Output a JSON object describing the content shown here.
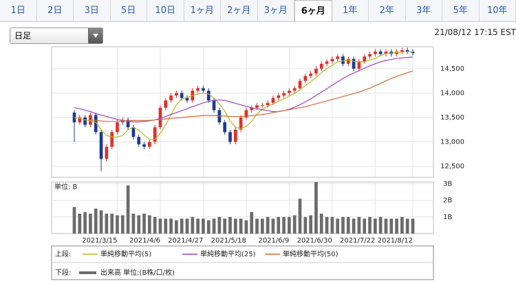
{
  "tabs": {
    "items": [
      "1日",
      "2日",
      "3日",
      "5日",
      "10日",
      "1ヶ月",
      "2ヶ月",
      "3ヶ月",
      "6ヶ月",
      "1年",
      "2年",
      "3年",
      "5年",
      "10年"
    ],
    "selected": 8
  },
  "dropdown": "日足",
  "timestamp": "21/08/12 17:15 EST",
  "legend": {
    "upper_label": "上段:",
    "lower_label": "下段:"
  },
  "chart_data": [
    {
      "type": "candlestick",
      "color_up": "#e0302a",
      "color_down": "#1c3a94",
      "grid": true,
      "categories": [
        null,
        null,
        null,
        null,
        null,
        null,
        null,
        null,
        "2021/3/15",
        null,
        null,
        null,
        null,
        null,
        null,
        null,
        "2021/4/6",
        null,
        null,
        null,
        null,
        null,
        null,
        null,
        "2021/4/27",
        null,
        null,
        null,
        null,
        null,
        null,
        null,
        "2021/5/18",
        null,
        null,
        null,
        null,
        null,
        null,
        null,
        "2021/6/9",
        null,
        null,
        null,
        null,
        null,
        null,
        null,
        "2021/6/30",
        null,
        null,
        null,
        null,
        null,
        null,
        null,
        "2021/7/22",
        null,
        null,
        null,
        null,
        null,
        null,
        "2021/8/12"
      ],
      "open": [
        13600,
        13400,
        13500,
        13350,
        13550,
        13200,
        12650,
        12900,
        13200,
        13400,
        13450,
        13300,
        13100,
        12950,
        12900,
        13000,
        13300,
        13700,
        13850,
        13950,
        14000,
        13900,
        13850,
        14050,
        14100,
        14050,
        13850,
        13650,
        13400,
        13200,
        13000,
        13250,
        13500,
        13650,
        13700,
        13750,
        13750,
        13800,
        13900,
        13950,
        14000,
        14050,
        14100,
        14250,
        14350,
        14400,
        14500,
        14600,
        14650,
        14700,
        14750,
        14600,
        14700,
        14500,
        14650,
        14750,
        14800,
        14850,
        14800,
        14850,
        14800,
        14850,
        14880,
        14850
      ],
      "high": [
        13650,
        13550,
        13550,
        13600,
        13600,
        13250,
        12950,
        13250,
        13450,
        13500,
        13500,
        13350,
        13150,
        13000,
        13050,
        13350,
        13750,
        13900,
        14000,
        14050,
        14050,
        13950,
        14100,
        14150,
        14150,
        14100,
        13900,
        13700,
        13450,
        13250,
        13300,
        13550,
        13700,
        13750,
        13800,
        13800,
        13850,
        13950,
        14000,
        14050,
        14100,
        14150,
        14300,
        14400,
        14450,
        14550,
        14650,
        14700,
        14750,
        14800,
        14800,
        14750,
        14750,
        14700,
        14800,
        14850,
        14900,
        14900,
        14900,
        14900,
        14900,
        14930,
        14930,
        14900
      ],
      "low": [
        13000,
        13350,
        13300,
        13300,
        13150,
        12400,
        12600,
        12850,
        13150,
        13350,
        13250,
        13050,
        12900,
        12850,
        12850,
        12950,
        13250,
        13650,
        13800,
        13900,
        13850,
        13800,
        13800,
        14000,
        14000,
        13800,
        13600,
        13350,
        13150,
        12950,
        12950,
        13200,
        13450,
        13600,
        13650,
        13700,
        13700,
        13750,
        13850,
        13900,
        13950,
        14000,
        14050,
        14200,
        14300,
        14350,
        14450,
        14550,
        14600,
        14650,
        14550,
        14550,
        14450,
        14450,
        14600,
        14700,
        14750,
        14750,
        14750,
        14750,
        14750,
        14800,
        14800,
        14770
      ],
      "close": [
        13400,
        13500,
        13350,
        13550,
        13200,
        12650,
        12900,
        13200,
        13400,
        13450,
        13300,
        13100,
        12950,
        12900,
        13000,
        13300,
        13700,
        13850,
        13950,
        14000,
        13900,
        13850,
        14050,
        14100,
        14050,
        13850,
        13650,
        13400,
        13200,
        13000,
        13250,
        13500,
        13650,
        13700,
        13750,
        13750,
        13800,
        13900,
        13950,
        14000,
        14050,
        14100,
        14250,
        14350,
        14400,
        14500,
        14600,
        14650,
        14700,
        14750,
        14600,
        14700,
        14500,
        14650,
        14750,
        14800,
        14850,
        14800,
        14850,
        14800,
        14850,
        14880,
        14850,
        14820
      ],
      "series": [
        {
          "name": "単純移動平均(5)",
          "color": "#b7b820",
          "values": [
            13500,
            13480,
            13450,
            13430,
            13400,
            13250,
            13130,
            13100,
            13100,
            13130,
            13250,
            13300,
            13240,
            13140,
            13050,
            13050,
            13170,
            13350,
            13560,
            13760,
            13880,
            13910,
            13950,
            13980,
            14000,
            13980,
            13900,
            13780,
            13630,
            13430,
            13300,
            13270,
            13320,
            13420,
            13570,
            13670,
            13730,
            13780,
            13830,
            13880,
            13940,
            13990,
            14070,
            14150,
            14230,
            14320,
            14420,
            14500,
            14570,
            14640,
            14660,
            14680,
            14650,
            14640,
            14640,
            14680,
            14710,
            14770,
            14810,
            14820,
            14830,
            14840,
            14850,
            14840
          ]
        },
        {
          "name": "単純移動平均(25)",
          "color": "#9b3fc4",
          "values": [
            13700,
            13680,
            13650,
            13620,
            13580,
            13550,
            13520,
            13490,
            13460,
            13440,
            13420,
            13410,
            13410,
            13420,
            13430,
            13450,
            13480,
            13520,
            13560,
            13600,
            13640,
            13680,
            13720,
            13760,
            13800,
            13830,
            13850,
            13860,
            13850,
            13820,
            13790,
            13760,
            13730,
            13700,
            13680,
            13660,
            13640,
            13620,
            13620,
            13640,
            13670,
            13710,
            13760,
            13820,
            13880,
            13950,
            14020,
            14090,
            14160,
            14230,
            14300,
            14360,
            14410,
            14460,
            14510,
            14560,
            14600,
            14640,
            14670,
            14690,
            14710,
            14720,
            14730,
            14740
          ]
        },
        {
          "name": "単純移動平均(50)",
          "color": "#d2693a",
          "values": [
            null,
            null,
            null,
            13450,
            13440,
            13430,
            13420,
            13420,
            13420,
            13430,
            13430,
            13440,
            13440,
            13440,
            13440,
            13450,
            13460,
            13470,
            13480,
            13490,
            13500,
            13510,
            13520,
            13530,
            13540,
            13540,
            13540,
            13530,
            13530,
            13520,
            13520,
            13520,
            13530,
            13540,
            13550,
            13560,
            13580,
            13600,
            13620,
            13640,
            13660,
            13680,
            13700,
            13720,
            13750,
            13780,
            13810,
            13840,
            13870,
            13900,
            13930,
            13960,
            13990,
            14020,
            14060,
            14100,
            14150,
            14200,
            14250,
            14300,
            14340,
            14380,
            14420,
            14450
          ]
        }
      ],
      "ylim": [
        12275,
        14950
      ],
      "yticks": [
        {
          "value": 12500,
          "label": "12,500"
        },
        {
          "value": 13000,
          "label": "13,000"
        },
        {
          "value": 13500,
          "label": "13,500"
        },
        {
          "value": 14000,
          "label": "14,000"
        },
        {
          "value": 14500,
          "label": "14,500"
        }
      ]
    },
    {
      "type": "bar",
      "title": "単位: B",
      "name": "出来高 単位:(B株/口/枚)",
      "color": "#6b6b6b",
      "grid": true,
      "values": [
        1.6,
        1.2,
        1.3,
        1.2,
        1.5,
        1.4,
        1.2,
        1.2,
        1.1,
        1.1,
        2.9,
        1.2,
        1.1,
        1.2,
        1.1,
        1.0,
        0.9,
        0.9,
        0.9,
        0.8,
        0.9,
        0.9,
        1.0,
        0.9,
        0.9,
        0.8,
        0.9,
        1.0,
        0.9,
        1.0,
        0.9,
        0.9,
        0.8,
        1.3,
        0.9,
        0.9,
        1.0,
        0.9,
        1.0,
        1.0,
        1.0,
        1.1,
        2.1,
        1.0,
        1.1,
        3.1,
        1.2,
        1.0,
        1.0,
        0.9,
        1.0,
        1.0,
        0.9,
        1.0,
        0.9,
        1.0,
        0.9,
        1.0,
        0.9,
        0.9,
        0.9,
        1.0,
        0.9,
        0.9
      ],
      "ylim": [
        0,
        3.1
      ],
      "yticks": [
        {
          "value": 1,
          "label": "1B"
        },
        {
          "value": 2,
          "label": "2B"
        },
        {
          "value": 3,
          "label": "3B"
        }
      ]
    }
  ]
}
